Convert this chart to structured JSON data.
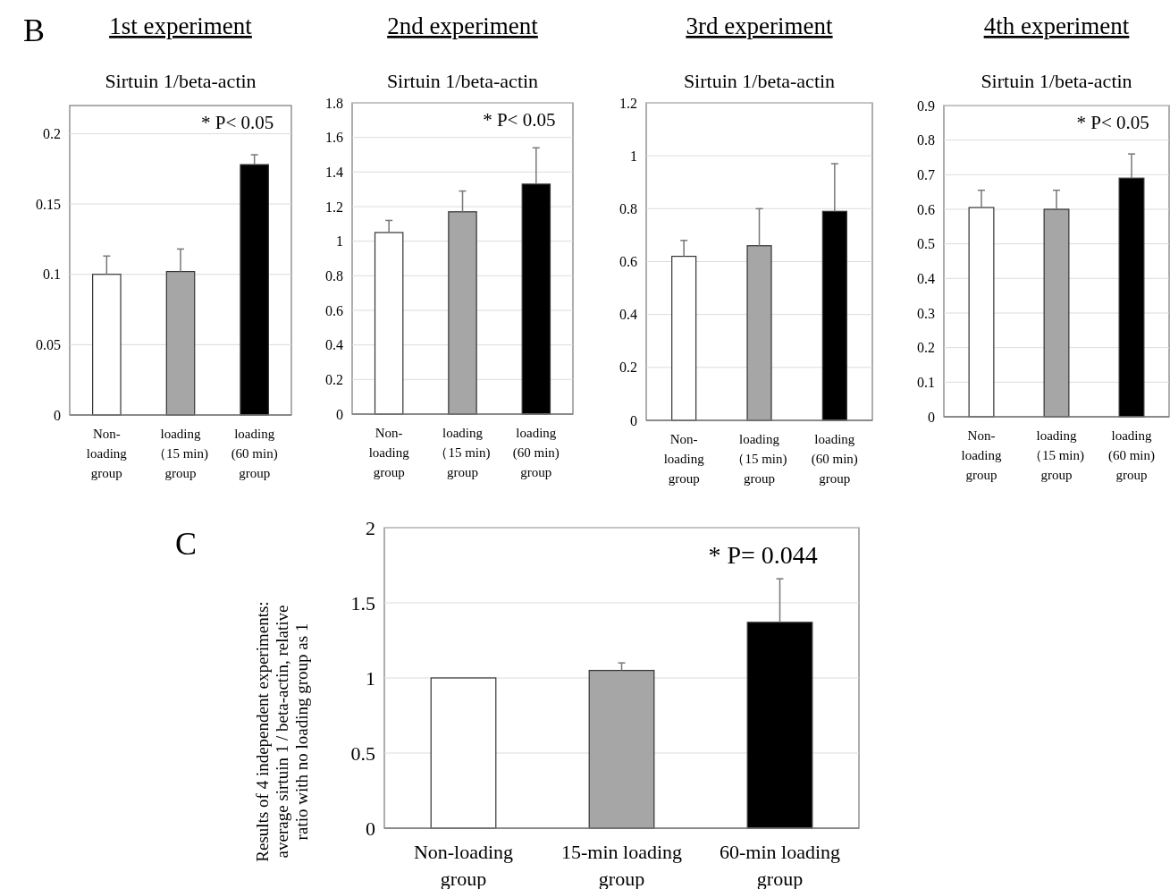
{
  "chart_data": [
    {
      "type": "bar",
      "title": "1st experiment",
      "subtitle": "Sirtuin 1/beta-actin",
      "annotations": [
        "B",
        "* P< 0.05"
      ],
      "categories": [
        "Non-\nloading\ngroup",
        "loading\n（15 min)\ngroup",
        "loading\n(60 min)\ngroup"
      ],
      "values": [
        0.1,
        0.102,
        0.178
      ],
      "colors": [
        "#ffffff",
        "#a6a6a6",
        "#000000"
      ],
      "errors": [
        [
          0.1,
          0.113
        ],
        [
          0.102,
          0.118
        ],
        [
          0.178,
          0.185
        ]
      ],
      "ylim": [
        0,
        0.22
      ],
      "yticks": [
        0,
        0.05,
        0.1,
        0.15,
        0.2
      ],
      "grid": "y"
    },
    {
      "type": "bar",
      "title": "2nd experiment",
      "subtitle": "Sirtuin 1/beta-actin",
      "annotations": [
        "* P< 0.05"
      ],
      "categories": [
        "Non-\nloading\ngroup",
        "loading\n（15 min)\ngroup",
        "loading\n(60 min)\ngroup"
      ],
      "values": [
        1.05,
        1.17,
        1.33
      ],
      "colors": [
        "#ffffff",
        "#a6a6a6",
        "#000000"
      ],
      "errors": [
        [
          1.05,
          1.12
        ],
        [
          1.17,
          1.29
        ],
        [
          1.33,
          1.54
        ]
      ],
      "ylim": [
        0,
        1.8
      ],
      "yticks": [
        0,
        0.2,
        0.4,
        0.6,
        0.8,
        1,
        1.2,
        1.4,
        1.6,
        1.8
      ],
      "grid": "y"
    },
    {
      "type": "bar",
      "title": "3rd experiment",
      "subtitle": "Sirtuin 1/beta-actin",
      "categories": [
        "Non-\nloading\ngroup",
        "loading\n（15 min)\ngroup",
        "loading\n(60 min)\ngroup"
      ],
      "values": [
        0.62,
        0.66,
        0.79
      ],
      "colors": [
        "#ffffff",
        "#a6a6a6",
        "#000000"
      ],
      "errors": [
        [
          0.62,
          0.68
        ],
        [
          0.66,
          0.8
        ],
        [
          0.79,
          0.97
        ]
      ],
      "ylim": [
        0,
        1.2
      ],
      "yticks": [
        0,
        0.2,
        0.4,
        0.6,
        0.8,
        1,
        1.2
      ],
      "grid": "y"
    },
    {
      "type": "bar",
      "title": "4th experiment",
      "subtitle": "Sirtuin 1/beta-actin",
      "annotations": [
        "* P< 0.05"
      ],
      "categories": [
        "Non-\nloading\ngroup",
        "loading\n（15 min)\ngroup",
        "loading\n(60 min)\ngroup"
      ],
      "values": [
        0.605,
        0.6,
        0.69
      ],
      "colors": [
        "#ffffff",
        "#a6a6a6",
        "#000000"
      ],
      "errors": [
        [
          0.605,
          0.655
        ],
        [
          0.6,
          0.655
        ],
        [
          0.69,
          0.76
        ]
      ],
      "ylim": [
        0,
        0.9
      ],
      "yticks": [
        0,
        0.1,
        0.2,
        0.3,
        0.4,
        0.5,
        0.6,
        0.7,
        0.8,
        0.9
      ],
      "grid": "y"
    },
    {
      "type": "bar",
      "ylabel": "Results of 4 independent experiments:\naverage sirtuin 1 / beta-actin, relative\nratio with no loading group as 1",
      "annotations": [
        "C",
        "* P= 0.044"
      ],
      "categories": [
        "Non-loading\ngroup",
        "15-min loading\ngroup",
        "60-min loading\ngroup"
      ],
      "values": [
        1,
        1.05,
        1.37
      ],
      "colors": [
        "#ffffff",
        "#a6a6a6",
        "#000000"
      ],
      "errors": [
        null,
        [
          1.05,
          1.1
        ],
        [
          1.37,
          1.66
        ]
      ],
      "ylim": [
        0,
        2
      ],
      "yticks": [
        0,
        0.5,
        1,
        1.5,
        2
      ],
      "grid": "y"
    }
  ]
}
